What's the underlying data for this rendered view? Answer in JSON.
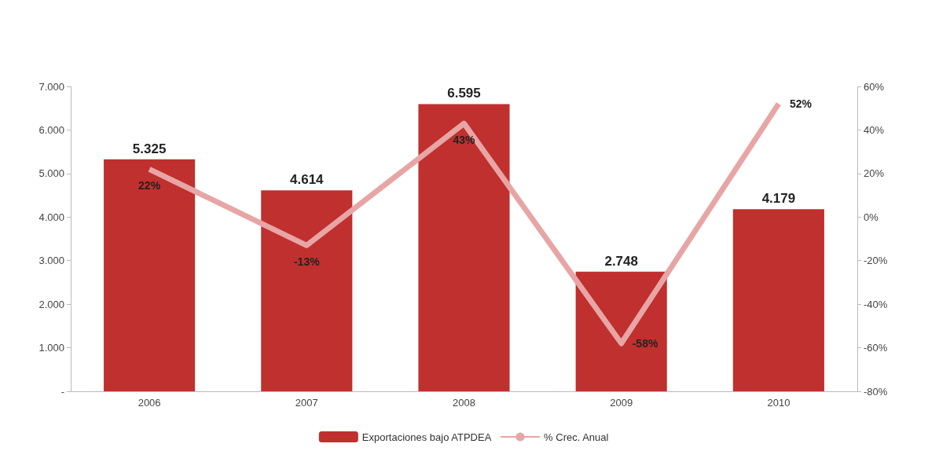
{
  "chart_data": {
    "type": "bar",
    "categories": [
      "2006",
      "2007",
      "2008",
      "2009",
      "2010"
    ],
    "series": [
      {
        "name": "Exportaciones bajo ATPDEA",
        "color": "#c0302e",
        "values": [
          5325,
          4614,
          6595,
          2748,
          4179
        ],
        "value_labels": [
          "5.325",
          "4.614",
          "6.595",
          "2.748",
          "4.179"
        ]
      },
      {
        "name": "% Crec. Anual",
        "type": "line",
        "axis": "y2",
        "color": "#e8a5a5",
        "values": [
          22,
          -13,
          43,
          -58,
          52
        ],
        "value_labels": [
          "22%",
          "-13%",
          "43%",
          "-58%",
          "52%"
        ],
        "marker": "none"
      }
    ],
    "ylim": [
      0,
      7000
    ],
    "yticks": [
      {
        "value": 0,
        "label": "-"
      },
      {
        "value": 1000,
        "label": "1.000"
      },
      {
        "value": 2000,
        "label": "2.000"
      },
      {
        "value": 3000,
        "label": "3.000"
      },
      {
        "value": 4000,
        "label": "4.000"
      },
      {
        "value": 5000,
        "label": "5.000"
      },
      {
        "value": 6000,
        "label": "6.000"
      },
      {
        "value": 7000,
        "label": "7.000"
      }
    ],
    "y2lim": [
      -80,
      60
    ],
    "y2ticks": [
      {
        "value": -80,
        "label": "-80%"
      },
      {
        "value": -60,
        "label": "-60%"
      },
      {
        "value": -40,
        "label": "-40%"
      },
      {
        "value": -20,
        "label": "-20%"
      },
      {
        "value": 0,
        "label": "0%"
      },
      {
        "value": 20,
        "label": "20%"
      },
      {
        "value": 40,
        "label": "40%"
      },
      {
        "value": 60,
        "label": "60%"
      }
    ],
    "grid": false,
    "legend": "bottom"
  }
}
